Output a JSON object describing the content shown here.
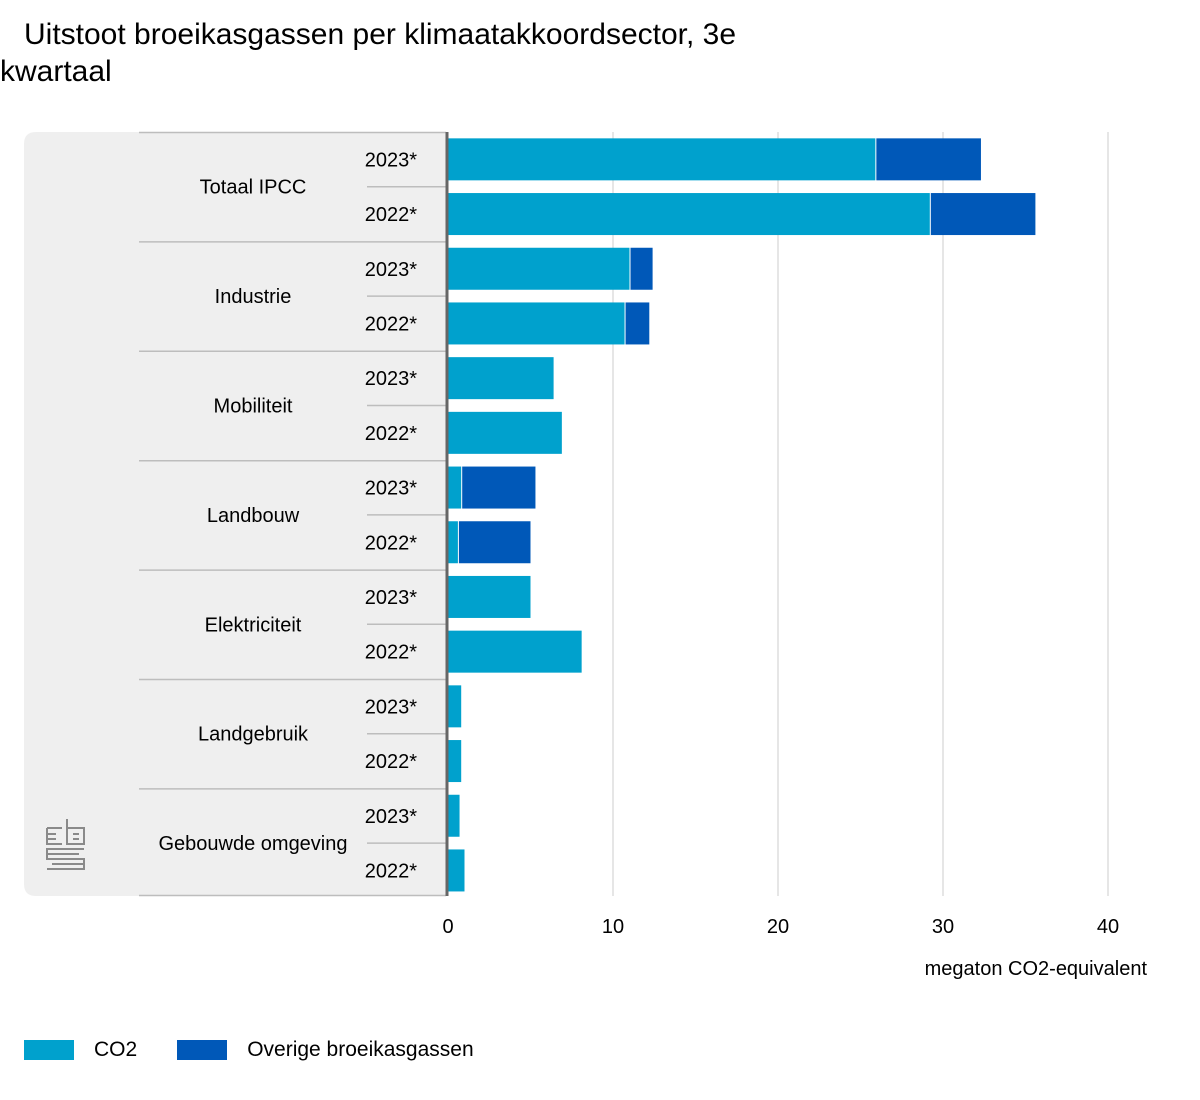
{
  "title_line1": "Uitstoot broeikasgassen per klimaatakkoordsector, 3e",
  "title_line2": "kwartaal",
  "colors": {
    "co2": "#00a1cd",
    "other": "#0058b8",
    "panel": "#efefef",
    "grid": "#cccccc",
    "divider": "#bdbdbd"
  },
  "logo_icon": "cbs-logo-icon",
  "chart_data": {
    "type": "bar",
    "orientation": "horizontal",
    "stacked": true,
    "groups": [
      "Totaal IPCC",
      "Industrie",
      "Mobiliteit",
      "Landbouw",
      "Elektriciteit",
      "Landgebruik",
      "Gebouwde omgeving"
    ],
    "years": [
      "2023*",
      "2022*"
    ],
    "series": [
      {
        "name": "CO2",
        "values": [
          [
            25.9,
            29.2
          ],
          [
            11.0,
            10.7
          ],
          [
            6.4,
            6.9
          ],
          [
            0.8,
            0.6
          ],
          [
            5.0,
            8.1
          ],
          [
            0.8,
            0.8
          ],
          [
            0.7,
            1.0
          ]
        ]
      },
      {
        "name": "Overige broeikasgassen",
        "values": [
          [
            6.4,
            6.4
          ],
          [
            1.4,
            1.5
          ],
          [
            0.0,
            0.0
          ],
          [
            4.5,
            4.4
          ],
          [
            0.0,
            0.0
          ],
          [
            0.0,
            0.0
          ],
          [
            0.0,
            0.0
          ]
        ]
      }
    ],
    "xlabel": "megaton CO2-equivalent",
    "xlim": [
      0,
      40
    ],
    "xticks": [
      0,
      10,
      20,
      30,
      40
    ],
    "grid": true,
    "legend_position": "bottom-left"
  }
}
